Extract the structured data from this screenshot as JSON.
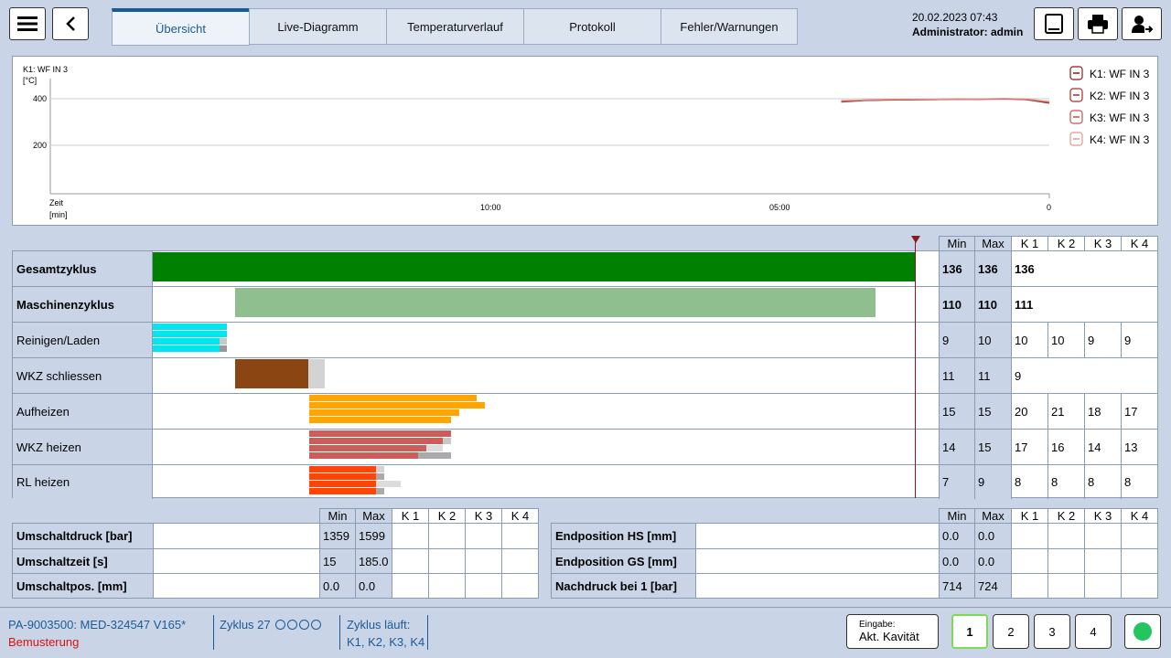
{
  "header": {
    "tabs": [
      "Übersicht",
      "Live-Diagramm",
      "Temperaturverlauf",
      "Protokoll",
      "Fehler/Warnungen"
    ],
    "active_tab": 0,
    "date": "20.02.2023 07:43",
    "user": "Administrator: admin"
  },
  "chart": {
    "series_label": "K1: WF IN 3",
    "y_unit": "[°C]",
    "y_ticks": [
      "400",
      "200"
    ],
    "x_label": "Zeit",
    "x_unit": "[min]",
    "x_ticks": [
      "10:00",
      "05:00",
      "0"
    ],
    "legend": [
      "K1: WF IN 3",
      "K2: WF IN 3",
      "K3: WF IN 3",
      "K4: WF IN 3"
    ],
    "colors": [
      "#8b1a1a",
      "#b02a2a",
      "#c75050",
      "#e09a8a"
    ]
  },
  "chart_data": {
    "type": "line",
    "title": "K1: WF IN 3",
    "xlabel": "Zeit [min]",
    "ylabel": "[°C]",
    "ylim": [
      0,
      480
    ],
    "x_ticks": [
      "10:00",
      "05:00",
      "0"
    ],
    "series": [
      {
        "name": "K1: WF IN 3",
        "x_min": [
          3.6,
          3.2,
          2.8,
          2.4,
          2.0,
          1.6,
          1.2,
          0.8,
          0.4,
          0.0
        ],
        "values": [
          390,
          396,
          398,
          399,
          400,
          402,
          401,
          403,
          400,
          385
        ]
      },
      {
        "name": "K2: WF IN 3",
        "x_min": [
          3.6,
          3.2,
          2.8,
          2.4,
          2.0,
          1.6,
          1.2,
          0.8,
          0.4,
          0.0
        ],
        "values": [
          394,
          398,
          400,
          401,
          401,
          403,
          402,
          404,
          402,
          390
        ]
      },
      {
        "name": "K3: WF IN 3",
        "x_min": [
          3.6,
          3.2,
          2.8,
          2.4,
          2.0,
          1.6,
          1.2,
          0.8,
          0.4,
          0.0
        ],
        "values": [
          392,
          397,
          399,
          400,
          400,
          402,
          401,
          402,
          401,
          388
        ]
      },
      {
        "name": "K4: WF IN 3",
        "x_min": [
          3.6,
          3.2,
          2.8,
          2.4,
          2.0,
          1.6,
          1.2,
          0.8,
          0.4,
          0.0
        ],
        "values": [
          396,
          399,
          401,
          402,
          402,
          404,
          403,
          405,
          403,
          392
        ]
      }
    ]
  },
  "gantt": {
    "headers": [
      "Min",
      "Max",
      "K 1",
      "K 2",
      "K 3",
      "K 4"
    ],
    "rows": [
      {
        "label": "Gesamtzyklus",
        "bold": true,
        "min": "136",
        "max": "136",
        "k": [
          "136"
        ],
        "merged": true
      },
      {
        "label": "Maschinenzyklus",
        "bold": true,
        "min": "110",
        "max": "110",
        "k": [
          "111"
        ],
        "merged": true
      },
      {
        "label": "Reinigen/Laden",
        "bold": false,
        "min": "9",
        "max": "10",
        "k": [
          "10",
          "10",
          "9",
          "9"
        ],
        "merged": false
      },
      {
        "label": "WKZ schliessen",
        "bold": false,
        "min": "11",
        "max": "11",
        "k": [
          "9"
        ],
        "merged": true
      },
      {
        "label": "Aufheizen",
        "bold": false,
        "min": "15",
        "max": "15",
        "k": [
          "20",
          "21",
          "18",
          "17"
        ],
        "merged": false
      },
      {
        "label": "WKZ heizen",
        "bold": false,
        "min": "14",
        "max": "15",
        "k": [
          "17",
          "16",
          "14",
          "13"
        ],
        "merged": false
      },
      {
        "label": "RL heizen",
        "bold": false,
        "min": "7",
        "max": "9",
        "k": [
          "8",
          "8",
          "8",
          "8"
        ],
        "merged": false
      }
    ]
  },
  "switch_table": {
    "headers": [
      "Min",
      "Max",
      "K 1",
      "K 2",
      "K 3",
      "K 4"
    ],
    "rows": [
      {
        "label": "Umschaltdruck [bar]",
        "min": "1359",
        "max": "1599"
      },
      {
        "label": "Umschaltzeit [s]",
        "min": "15",
        "max": "185.0"
      },
      {
        "label": "Umschaltpos. [mm]",
        "min": "0.0",
        "max": "0.0"
      }
    ]
  },
  "position_table": {
    "headers": [
      "Min",
      "Max",
      "K 1",
      "K 2",
      "K 3",
      "K 4"
    ],
    "rows": [
      {
        "label": "Endposition HS [mm]",
        "min": "0.0",
        "max": "0.0"
      },
      {
        "label": "Endposition GS [mm]",
        "min": "0.0",
        "max": "0.0"
      },
      {
        "label": "Nachdruck bei 1 [bar]",
        "min": "714",
        "max": "724"
      }
    ]
  },
  "footer": {
    "program": "PA-9003500: MED-324547 V165*",
    "mode": "Bemusterung",
    "cycle": "Zyklus 27",
    "cycle_running_label": "Zyklus läuft:",
    "cycle_running_value": "K1, K2, K3, K4",
    "input_label": "Eingabe:",
    "input_value": "Akt. Kavität",
    "cavity_buttons": [
      "1",
      "2",
      "3",
      "4"
    ],
    "active_cavity": "1",
    "status_color": "#22c55e"
  }
}
